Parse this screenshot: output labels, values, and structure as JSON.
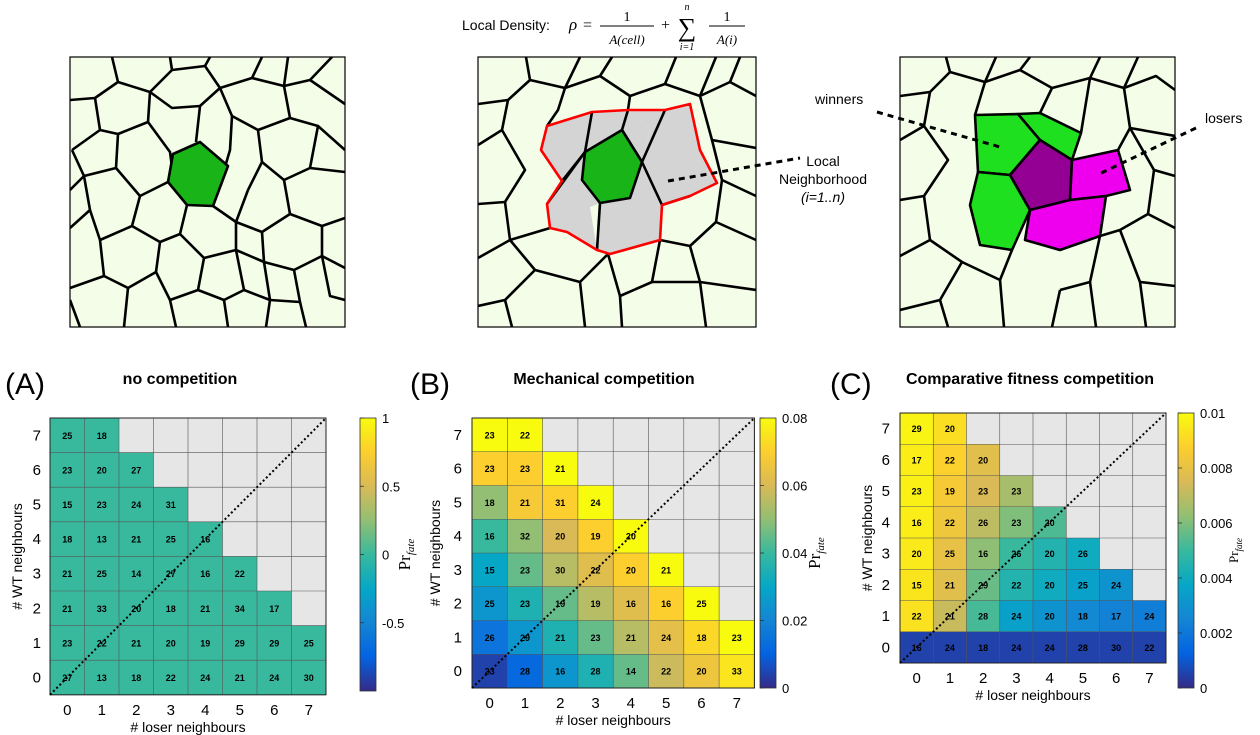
{
  "illustrations": {
    "formula": {
      "prefix": "Local Density:",
      "rho": "ρ",
      "eq": "=",
      "one": "1",
      "a_cell": "A(cell)",
      "plus": "+",
      "sum": "∑",
      "sum_top": "n",
      "sum_bottom": "i=1",
      "a_i": "A(i)"
    },
    "neighborhood_label": [
      "Local",
      "Neighborhood",
      "(i=1..n)"
    ],
    "winners_label": "winners",
    "losers_label": "losers",
    "colors": {
      "background": "#f3fde8",
      "membrane": "#000000",
      "target_cell": "#18b418",
      "neighbor_fill": "#d4d4d4",
      "neighborhood_outline": "#ff0000",
      "winner": "#1ee01e",
      "loser": "#ee00ee",
      "loser_center": "#930093"
    }
  },
  "chart_data": [
    {
      "type": "heatmap",
      "panel_label": "(A)",
      "title": "no competition",
      "xlabel": "# loser neighbours",
      "ylabel": "# WT neighbours",
      "x_ticks": [
        0,
        1,
        2,
        3,
        4,
        5,
        6,
        7
      ],
      "y_ticks": [
        0,
        1,
        2,
        3,
        4,
        5,
        6,
        7
      ],
      "colorbar": {
        "label": "Pr_fate",
        "range": [
          -1,
          1
        ],
        "ticks": [
          "1",
          "0.5",
          "0",
          "-0.5"
        ],
        "tick_values": [
          1,
          0.5,
          0,
          -0.5
        ]
      },
      "diagonal": "dotted",
      "rows": [
        {
          "wt": 7,
          "counts": [
            25,
            18
          ],
          "values": [
            0,
            0
          ]
        },
        {
          "wt": 6,
          "counts": [
            23,
            20,
            27
          ],
          "values": [
            0,
            0,
            0
          ]
        },
        {
          "wt": 5,
          "counts": [
            15,
            23,
            24,
            31
          ],
          "values": [
            0,
            0,
            0,
            0
          ]
        },
        {
          "wt": 4,
          "counts": [
            18,
            13,
            21,
            25,
            16
          ],
          "values": [
            0,
            0,
            0,
            0,
            0
          ]
        },
        {
          "wt": 3,
          "counts": [
            21,
            25,
            14,
            27,
            16,
            22
          ],
          "values": [
            0,
            0,
            0,
            0,
            0,
            0
          ]
        },
        {
          "wt": 2,
          "counts": [
            21,
            33,
            20,
            18,
            21,
            34,
            17
          ],
          "values": [
            0,
            0,
            0,
            0,
            0,
            0,
            0
          ]
        },
        {
          "wt": 1,
          "counts": [
            23,
            22,
            21,
            20,
            19,
            29,
            29,
            25
          ],
          "values": [
            0,
            0,
            0,
            0,
            0,
            0,
            0,
            0
          ]
        },
        {
          "wt": 0,
          "counts": [
            27,
            13,
            18,
            22,
            24,
            21,
            24,
            30
          ],
          "values": [
            0,
            0,
            0,
            0,
            0,
            0,
            0,
            0
          ]
        }
      ]
    },
    {
      "type": "heatmap",
      "panel_label": "(B)",
      "title": "Mechanical competition",
      "xlabel": "# loser neighbours",
      "ylabel": "# WT neighbours",
      "x_ticks": [
        0,
        1,
        2,
        3,
        4,
        5,
        6,
        7
      ],
      "y_ticks": [
        0,
        1,
        2,
        3,
        4,
        5,
        6,
        7
      ],
      "colorbar": {
        "label": "Pr_fate",
        "range": [
          0,
          0.08
        ],
        "ticks": [
          "0.08",
          "0.06",
          "0.04",
          "0.02",
          "0"
        ],
        "tick_values": [
          0.08,
          0.06,
          0.04,
          0.02,
          0
        ]
      },
      "diagonal": "dotted",
      "rows": [
        {
          "wt": 7,
          "counts": [
            23,
            22
          ],
          "values": [
            0.08,
            0.08
          ]
        },
        {
          "wt": 6,
          "counts": [
            23,
            23,
            21
          ],
          "values": [
            0.07,
            0.07,
            0.08
          ]
        },
        {
          "wt": 5,
          "counts": [
            18,
            21,
            31,
            24
          ],
          "values": [
            0.05,
            0.068,
            0.07,
            0.08
          ]
        },
        {
          "wt": 4,
          "counts": [
            16,
            32,
            20,
            19,
            20
          ],
          "values": [
            0.04,
            0.05,
            0.06,
            0.07,
            0.08
          ]
        },
        {
          "wt": 3,
          "counts": [
            15,
            23,
            30,
            22,
            20,
            21
          ],
          "values": [
            0.03,
            0.045,
            0.055,
            0.062,
            0.07,
            0.08
          ]
        },
        {
          "wt": 2,
          "counts": [
            25,
            23,
            19,
            19,
            16,
            16,
            25
          ],
          "values": [
            0.025,
            0.035,
            0.045,
            0.055,
            0.062,
            0.07,
            0.08
          ]
        },
        {
          "wt": 1,
          "counts": [
            26,
            29,
            21,
            23,
            21,
            24,
            18,
            23
          ],
          "values": [
            0.015,
            0.025,
            0.035,
            0.045,
            0.055,
            0.063,
            0.072,
            0.08
          ]
        },
        {
          "wt": 0,
          "counts": [
            23,
            28,
            16,
            28,
            14,
            22,
            20,
            33
          ],
          "values": [
            0.004,
            0.012,
            0.025,
            0.035,
            0.045,
            0.058,
            0.066,
            0.075
          ]
        }
      ]
    },
    {
      "type": "heatmap",
      "panel_label": "(C)",
      "title": "Comparative fitness competition",
      "xlabel": "# loser neighbours",
      "ylabel": "# WT neighbours",
      "x_ticks": [
        0,
        1,
        2,
        3,
        4,
        5,
        6,
        7
      ],
      "y_ticks": [
        0,
        1,
        2,
        3,
        4,
        5,
        6,
        7
      ],
      "colorbar": {
        "label": "Pr_fate",
        "range": [
          0,
          0.01
        ],
        "ticks": [
          "0.01",
          "0.008",
          "0.006",
          "0.004",
          "0.002",
          "0"
        ],
        "tick_values": [
          0.01,
          0.008,
          0.006,
          0.004,
          0.002,
          0
        ]
      },
      "diagonal": "dotted",
      "rows": [
        {
          "wt": 7,
          "counts": [
            29,
            20
          ],
          "values": [
            0.0098,
            0.0092
          ]
        },
        {
          "wt": 6,
          "counts": [
            17,
            22,
            20
          ],
          "values": [
            0.0096,
            0.0088,
            0.0078
          ]
        },
        {
          "wt": 5,
          "counts": [
            23,
            19,
            23,
            23
          ],
          "values": [
            0.0097,
            0.0085,
            0.0075,
            0.0066
          ]
        },
        {
          "wt": 4,
          "counts": [
            16,
            22,
            26,
            23,
            20
          ],
          "values": [
            0.0096,
            0.0083,
            0.007,
            0.006,
            0.0053
          ]
        },
        {
          "wt": 3,
          "counts": [
            20,
            25,
            16,
            26,
            20,
            26
          ],
          "values": [
            0.0095,
            0.008,
            0.0062,
            0.005,
            0.0045,
            0.004
          ]
        },
        {
          "wt": 2,
          "counts": [
            15,
            21,
            29,
            22,
            20,
            25,
            24
          ],
          "values": [
            0.0094,
            0.0078,
            0.0057,
            0.0045,
            0.004,
            0.0035,
            0.003
          ]
        },
        {
          "wt": 1,
          "counts": [
            22,
            21,
            28,
            24,
            20,
            18,
            17,
            24
          ],
          "values": [
            0.0093,
            0.0072,
            0.0052,
            0.0035,
            0.003,
            0.0026,
            0.0024,
            0.0022
          ]
        },
        {
          "wt": 0,
          "counts": [
            16,
            24,
            18,
            24,
            24,
            28,
            30,
            22
          ],
          "values": [
            0.0005,
            0.0005,
            0.0005,
            0.0005,
            0.0005,
            0.0005,
            0.0005,
            0.0005
          ]
        }
      ]
    }
  ]
}
